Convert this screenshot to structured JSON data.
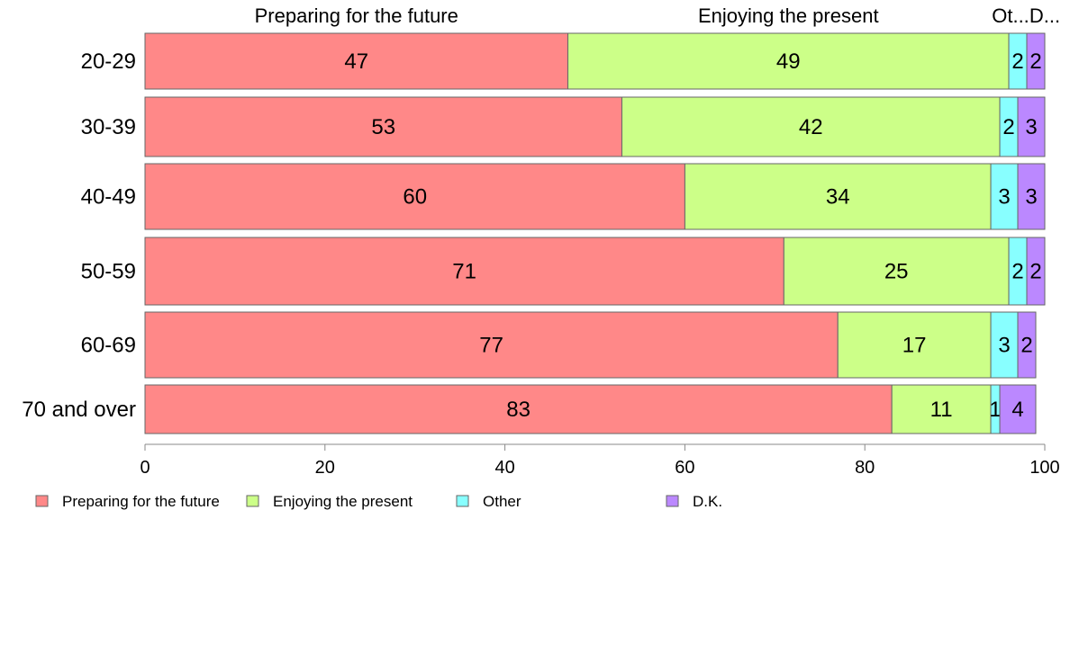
{
  "chart_data": {
    "type": "bar",
    "orientation": "horizontal",
    "stacked": true,
    "categories": [
      "20-29",
      "30-39",
      "40-49",
      "50-59",
      "60-69",
      "70 and over"
    ],
    "series": [
      {
        "name": "Preparing for the future",
        "color": "#ff8888",
        "values": [
          47,
          53,
          60,
          71,
          77,
          83
        ]
      },
      {
        "name": "Enjoying the present",
        "color": "#ccff88",
        "values": [
          49,
          42,
          34,
          25,
          17,
          11
        ]
      },
      {
        "name": "Other",
        "color": "#88ffff",
        "values": [
          2,
          2,
          3,
          2,
          3,
          1
        ]
      },
      {
        "name": "D.K.",
        "color": "#bb88ff",
        "values": [
          2,
          3,
          3,
          2,
          2,
          4
        ]
      }
    ],
    "column_headers": [
      "Preparing for the future",
      "Enjoying the present",
      "Ot...",
      "D..."
    ],
    "xlim": [
      0,
      100
    ],
    "xticks": [
      0,
      20,
      40,
      60,
      80,
      100
    ],
    "grid": false,
    "legend_position": "bottom-left"
  }
}
